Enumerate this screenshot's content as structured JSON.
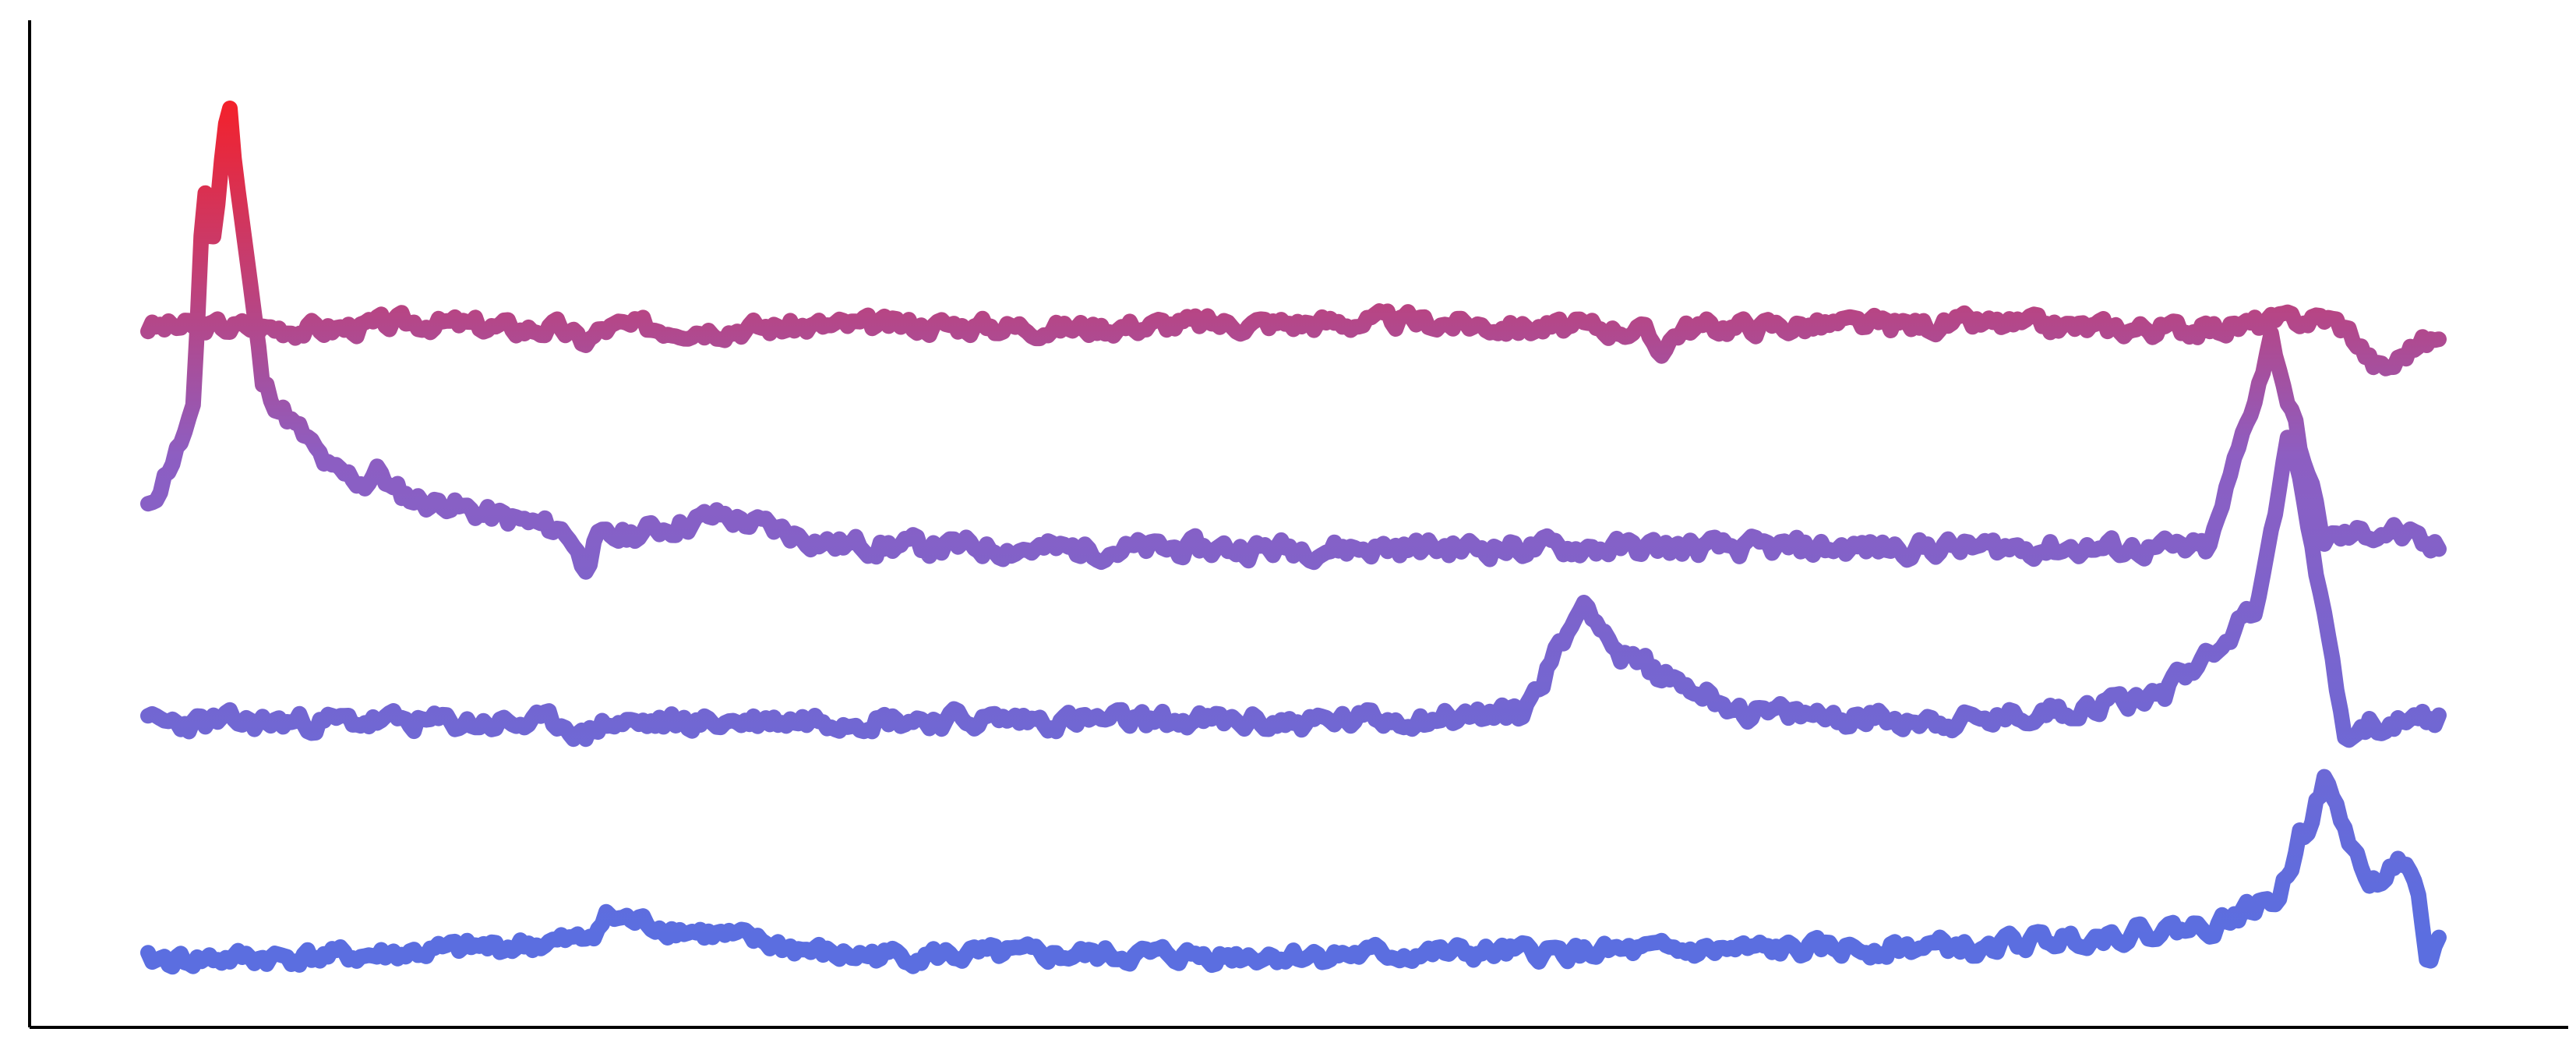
{
  "chart_data": {
    "type": "line",
    "title": "",
    "xlabel": "",
    "ylabel": "",
    "grid": false,
    "legend": "none",
    "xlim": [
      0,
      1
    ],
    "ylim": [
      0,
      1
    ],
    "colors": {
      "low": "#5b6ee0",
      "mid": "#8d5ec2",
      "high": "#ff1a1a",
      "axis": "#000000"
    },
    "series": [
      {
        "baseline": 0.71,
        "amplitude": 0.008,
        "seed": 3,
        "peaks": [],
        "dips": [
          [
            0.19,
            0.014,
            0.007
          ],
          [
            0.66,
            0.02,
            0.006
          ],
          [
            0.975,
            0.04,
            0.012
          ]
        ],
        "x": [
          0.0,
          0.04,
          0.08,
          0.12,
          0.16,
          0.2,
          0.25,
          0.3,
          0.35,
          0.4,
          0.45,
          0.5,
          0.55,
          0.6,
          0.65,
          0.7,
          0.75,
          0.8,
          0.85,
          0.9,
          0.95,
          1.0
        ],
        "y": [
          0.71,
          0.71,
          0.708,
          0.715,
          0.708,
          0.71,
          0.709,
          0.711,
          0.712,
          0.709,
          0.713,
          0.714,
          0.716,
          0.71,
          0.708,
          0.711,
          0.712,
          0.713,
          0.709,
          0.708,
          0.72,
          0.695
        ]
      },
      {
        "baseline": 0.48,
        "amplitude": 0.009,
        "seed": 11,
        "peaks": [
          [
            0.035,
            0.94,
            0.006
          ],
          [
            0.025,
            0.85,
            0.005
          ],
          [
            0.044,
            0.72,
            0.004
          ],
          [
            0.03,
            0.76,
            0.007
          ],
          [
            0.07,
            0.57,
            0.014
          ],
          [
            0.1,
            0.56,
            0.012
          ],
          [
            0.13,
            0.53,
            0.014
          ],
          [
            0.247,
            0.515,
            0.003
          ],
          [
            0.927,
            0.7,
            0.003
          ]
        ],
        "dips": [
          [
            0.19,
            0.03,
            0.004
          ]
        ],
        "x": [
          0.0,
          0.02,
          0.035,
          0.05,
          0.08,
          0.12,
          0.2,
          0.25,
          0.3,
          0.4,
          0.5,
          0.6,
          0.7,
          0.8,
          0.9,
          0.927,
          0.95,
          0.98,
          1.0
        ],
        "y": [
          0.52,
          0.62,
          0.94,
          0.65,
          0.56,
          0.53,
          0.49,
          0.515,
          0.485,
          0.48,
          0.481,
          0.482,
          0.481,
          0.482,
          0.48,
          0.7,
          0.49,
          0.5,
          0.474
        ]
      },
      {
        "baseline": 0.3,
        "amplitude": 0.009,
        "seed": 23,
        "peaks": [
          [
            0.628,
            0.43,
            0.003
          ],
          [
            0.642,
            0.37,
            0.003
          ],
          [
            0.615,
            0.34,
            0.008
          ],
          [
            0.92,
            0.42,
            0.004
          ],
          [
            0.935,
            0.6,
            0.003
          ],
          [
            0.905,
            0.35,
            0.006
          ],
          [
            0.885,
            0.36,
            0.004
          ],
          [
            0.88,
            0.33,
            0.02
          ]
        ],
        "dips": [
          [
            0.19,
            0.015,
            0.004
          ],
          [
            0.96,
            0.02,
            0.004
          ]
        ],
        "x": [
          0.0,
          0.1,
          0.2,
          0.3,
          0.4,
          0.5,
          0.6,
          0.628,
          0.642,
          0.7,
          0.8,
          0.88,
          0.92,
          0.935,
          0.96,
          1.0
        ],
        "y": [
          0.3,
          0.302,
          0.298,
          0.305,
          0.303,
          0.301,
          0.31,
          0.43,
          0.37,
          0.31,
          0.302,
          0.33,
          0.42,
          0.6,
          0.29,
          0.305
        ]
      },
      {
        "baseline": 0.055,
        "amplitude": 0.008,
        "seed": 41,
        "peaks": [
          [
            0.2,
            0.1,
            0.004
          ],
          [
            0.19,
            0.075,
            0.006
          ],
          [
            0.95,
            0.24,
            0.004
          ],
          [
            0.94,
            0.2,
            0.004
          ],
          [
            0.93,
            0.12,
            0.004
          ],
          [
            0.925,
            0.11,
            0.01
          ],
          [
            0.96,
            0.13,
            0.01
          ],
          [
            0.983,
            0.16,
            0.003
          ],
          [
            0.97,
            0.13,
            0.008
          ],
          [
            0.9,
            0.09,
            0.012
          ]
        ],
        "dips": [
          [
            0.8,
            0.01,
            0.004
          ],
          [
            0.995,
            0.06,
            0.003
          ]
        ],
        "x": [
          0.0,
          0.1,
          0.19,
          0.2,
          0.3,
          0.5,
          0.7,
          0.8,
          0.9,
          0.93,
          0.95,
          0.97,
          0.983,
          1.0
        ],
        "y": [
          0.055,
          0.06,
          0.075,
          0.1,
          0.06,
          0.06,
          0.065,
          0.07,
          0.09,
          0.12,
          0.24,
          0.13,
          0.16,
          0.08
        ]
      }
    ]
  }
}
